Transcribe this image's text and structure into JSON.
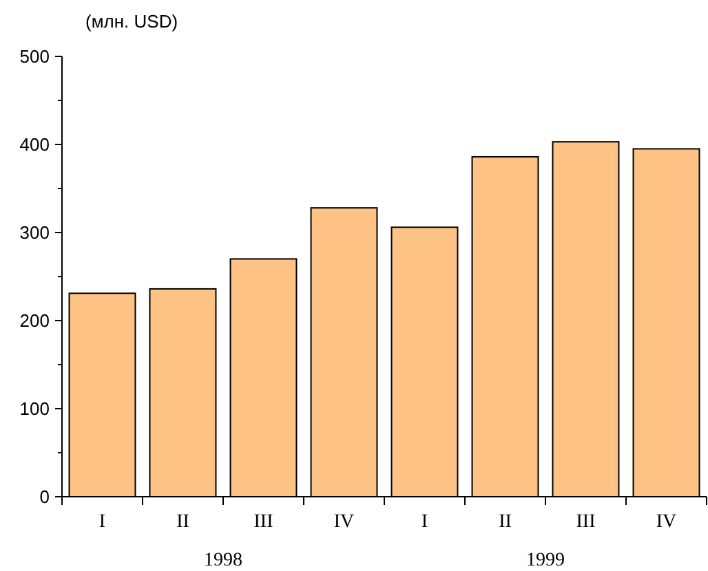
{
  "chart_data": {
    "type": "bar",
    "ylabel": "(млн. USD)",
    "categories": [
      "I",
      "II",
      "III",
      "IV",
      "I",
      "II",
      "III",
      "IV"
    ],
    "values": [
      231,
      236,
      270,
      328,
      306,
      386,
      403,
      395
    ],
    "color": "#ffc285",
    "ylim": [
      0,
      500
    ],
    "yticks": [
      0,
      {
        "value": 50,
        "label": null
      },
      100,
      {
        "value": 150,
        "label": null
      },
      200,
      {
        "value": 250,
        "label": null
      },
      300,
      {
        "value": 350,
        "label": null
      },
      400,
      {
        "value": 450,
        "label": null
      },
      500
    ],
    "annotations": [
      "1998",
      "1999"
    ],
    "grid": false
  }
}
